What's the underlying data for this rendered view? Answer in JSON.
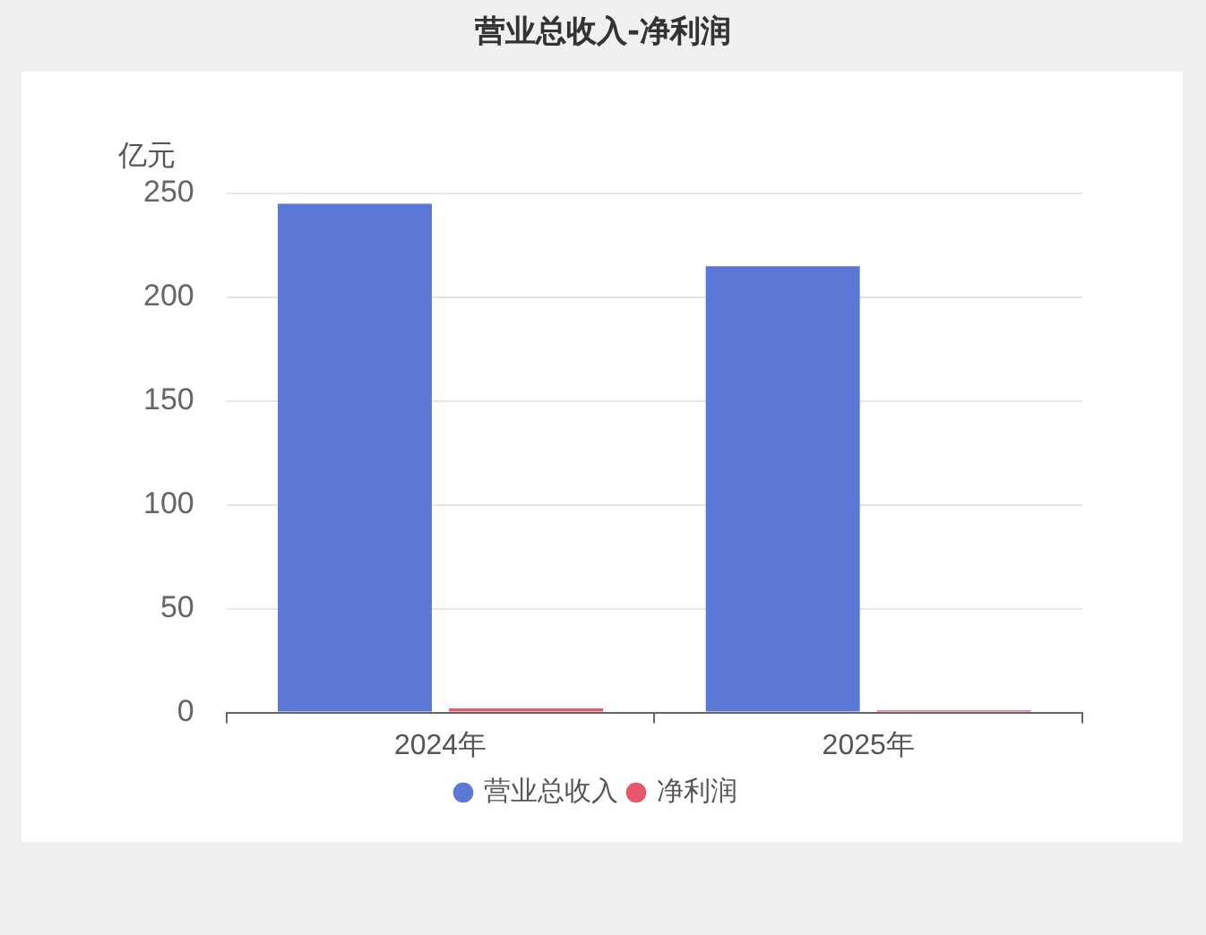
{
  "chart_data": {
    "type": "bar",
    "title": "营业总收入-净利润",
    "ylabel": "亿元",
    "categories": [
      "2024年",
      "2025年"
    ],
    "series": [
      {
        "name": "营业总收入",
        "color": "#5b78d6",
        "values": [
          245,
          215
        ]
      },
      {
        "name": "净利润",
        "color": "#e8566c",
        "values": [
          2,
          1
        ]
      }
    ],
    "ylim": [
      0,
      250
    ],
    "yticks": [
      0,
      50,
      100,
      150,
      200,
      250
    ],
    "grid": "y",
    "legend": "bottom"
  }
}
